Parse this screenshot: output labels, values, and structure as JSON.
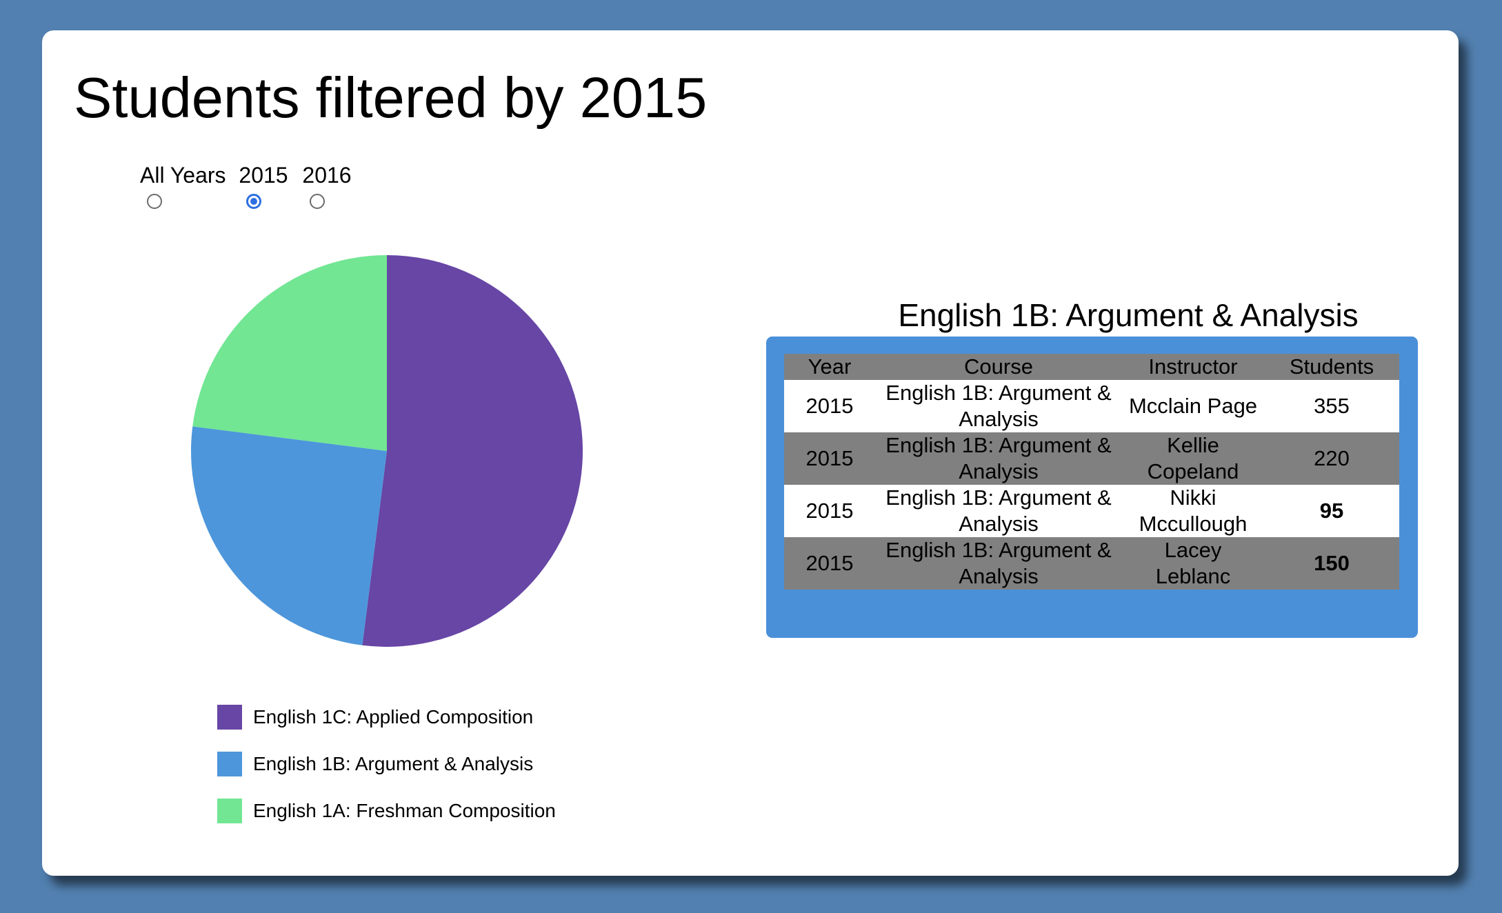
{
  "page": {
    "title": "Students filtered by 2015"
  },
  "year_filter": {
    "options": [
      {
        "label": "All Years",
        "checked": false
      },
      {
        "label": "2015",
        "checked": true
      },
      {
        "label": "2016",
        "checked": false
      }
    ]
  },
  "chart_data": {
    "type": "pie",
    "categories": [
      "English 1C: Applied Composition",
      "English 1B: Argument & Analysis",
      "English 1A: Freshman Composition"
    ],
    "values": [
      52,
      25,
      23
    ],
    "colors": [
      "#6746a5",
      "#4d96db",
      "#72e693"
    ],
    "legend_position": "bottom"
  },
  "table": {
    "title": "English 1B: Argument & Analysis",
    "columns": [
      "Year",
      "Course",
      "Instructor",
      "Students"
    ],
    "rows": [
      {
        "year": "2015",
        "course": "English 1B: Argument & Analysis",
        "instructor": "Mcclain Page",
        "students": "355",
        "bold": false
      },
      {
        "year": "2015",
        "course": "English 1B: Argument & Analysis",
        "instructor": "Kellie Copeland",
        "students": "220",
        "bold": false
      },
      {
        "year": "2015",
        "course": "English 1B: Argument & Analysis",
        "instructor": "Nikki Mccullough",
        "students": "95",
        "bold": true
      },
      {
        "year": "2015",
        "course": "English 1B: Argument & Analysis",
        "instructor": "Lacey Leblanc",
        "students": "150",
        "bold": true
      }
    ]
  }
}
